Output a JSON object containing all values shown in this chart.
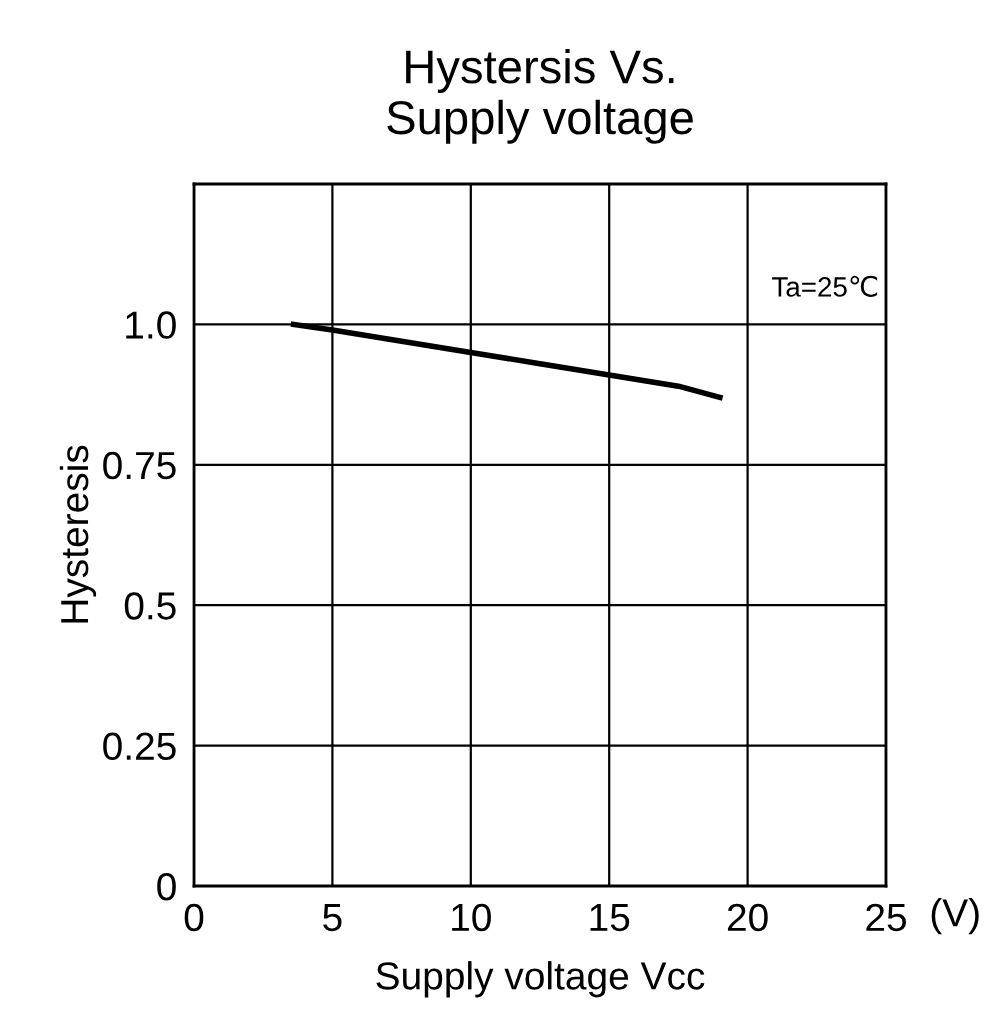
{
  "chart_data": {
    "type": "line",
    "title": "Hystersis Vs.\nSupply voltage",
    "xlabel": "Supply voltage Vcc",
    "ylabel": "Hysteresis",
    "x": [
      3.6,
      5,
      7.5,
      10,
      12.5,
      15,
      17.5,
      19
    ],
    "series": [
      {
        "color": "#000000",
        "values": [
          1.0,
          0.99,
          0.97,
          0.95,
          0.93,
          0.91,
          0.89,
          0.87
        ]
      }
    ],
    "xlim": [
      0,
      25
    ],
    "xticks": [
      0,
      5,
      10,
      15,
      20,
      25
    ],
    "ylim": [
      0,
      1.25
    ],
    "yticks": [
      0,
      0.25,
      0.5,
      0.75,
      {
        "value": 1.0,
        "label": "1.0"
      },
      {
        "value": 1.25,
        "label": null
      }
    ],
    "grid": true,
    "legend": false,
    "marker": "none",
    "line_style": "solid",
    "annotations": [
      "Ta=25℃",
      "(V)"
    ]
  }
}
